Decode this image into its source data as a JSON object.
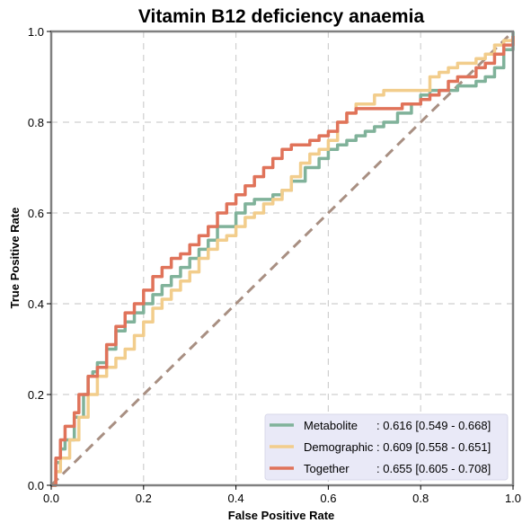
{
  "chart_data": {
    "type": "line",
    "title": "Vitamin B12 deficiency anaemia",
    "xlabel": "False Positive Rate",
    "ylabel": "True Positive Rate",
    "xlim": [
      0,
      1
    ],
    "ylim": [
      0,
      1
    ],
    "xticks": [
      "0.0",
      "0.2",
      "0.4",
      "0.6",
      "0.8",
      "1.0"
    ],
    "yticks": [
      "0.0",
      "0.2",
      "0.4",
      "0.6",
      "0.8",
      "1.0"
    ],
    "grid": true,
    "legend_position": "bottom-right",
    "legend_background": "#e9e9f7",
    "series": [
      {
        "name": "Metabolite",
        "auc_label": ": 0.616 [0.549 - 0.668]",
        "color": "#80b29a",
        "x": [
          0,
          0.01,
          0.02,
          0.03,
          0.05,
          0.07,
          0.08,
          0.09,
          0.1,
          0.12,
          0.14,
          0.16,
          0.18,
          0.2,
          0.22,
          0.24,
          0.26,
          0.28,
          0.3,
          0.32,
          0.34,
          0.36,
          0.4,
          0.42,
          0.44,
          0.46,
          0.48,
          0.5,
          0.52,
          0.55,
          0.58,
          0.6,
          0.62,
          0.64,
          0.66,
          0.68,
          0.7,
          0.72,
          0.75,
          0.78,
          0.8,
          0.82,
          0.85,
          0.88,
          0.9,
          0.92,
          0.94,
          0.96,
          0.98,
          1.0
        ],
        "y": [
          0,
          0.05,
          0.08,
          0.1,
          0.15,
          0.2,
          0.24,
          0.25,
          0.27,
          0.3,
          0.34,
          0.36,
          0.38,
          0.4,
          0.42,
          0.44,
          0.46,
          0.48,
          0.5,
          0.52,
          0.54,
          0.57,
          0.6,
          0.62,
          0.63,
          0.63,
          0.64,
          0.65,
          0.67,
          0.7,
          0.72,
          0.74,
          0.75,
          0.76,
          0.77,
          0.78,
          0.79,
          0.8,
          0.82,
          0.84,
          0.86,
          0.87,
          0.87,
          0.88,
          0.88,
          0.89,
          0.9,
          0.92,
          0.96,
          1.0
        ]
      },
      {
        "name": "Demographic",
        "auc_label": ": 0.609 [0.558 - 0.651]",
        "color": "#f2cd8c",
        "x": [
          0,
          0.01,
          0.02,
          0.04,
          0.06,
          0.08,
          0.1,
          0.12,
          0.14,
          0.16,
          0.18,
          0.2,
          0.22,
          0.24,
          0.26,
          0.28,
          0.3,
          0.32,
          0.34,
          0.36,
          0.38,
          0.4,
          0.42,
          0.44,
          0.46,
          0.48,
          0.5,
          0.52,
          0.54,
          0.56,
          0.58,
          0.6,
          0.62,
          0.64,
          0.66,
          0.7,
          0.72,
          0.76,
          0.8,
          0.82,
          0.84,
          0.86,
          0.88,
          0.9,
          0.92,
          0.94,
          0.96,
          0.98,
          1.0
        ],
        "y": [
          0,
          0.03,
          0.06,
          0.1,
          0.15,
          0.2,
          0.24,
          0.26,
          0.28,
          0.3,
          0.33,
          0.36,
          0.39,
          0.41,
          0.43,
          0.45,
          0.47,
          0.5,
          0.52,
          0.54,
          0.55,
          0.57,
          0.59,
          0.6,
          0.62,
          0.63,
          0.65,
          0.68,
          0.71,
          0.73,
          0.74,
          0.76,
          0.8,
          0.82,
          0.84,
          0.86,
          0.87,
          0.87,
          0.87,
          0.9,
          0.91,
          0.92,
          0.93,
          0.93,
          0.94,
          0.95,
          0.97,
          0.98,
          0.99
        ]
      },
      {
        "name": "Together",
        "auc_label": ": 0.655 [0.605 - 0.708]",
        "color": "#e0735a",
        "x": [
          0,
          0.01,
          0.02,
          0.03,
          0.05,
          0.06,
          0.08,
          0.1,
          0.12,
          0.14,
          0.16,
          0.18,
          0.2,
          0.22,
          0.24,
          0.26,
          0.28,
          0.3,
          0.32,
          0.34,
          0.36,
          0.38,
          0.4,
          0.42,
          0.44,
          0.46,
          0.48,
          0.5,
          0.52,
          0.54,
          0.56,
          0.58,
          0.6,
          0.62,
          0.64,
          0.66,
          0.7,
          0.72,
          0.76,
          0.8,
          0.82,
          0.84,
          0.86,
          0.88,
          0.9,
          0.92,
          0.94,
          0.96,
          0.98,
          1.0
        ],
        "y": [
          0,
          0.06,
          0.1,
          0.13,
          0.16,
          0.2,
          0.24,
          0.26,
          0.31,
          0.35,
          0.38,
          0.4,
          0.43,
          0.46,
          0.48,
          0.5,
          0.51,
          0.53,
          0.55,
          0.57,
          0.6,
          0.62,
          0.64,
          0.66,
          0.68,
          0.7,
          0.72,
          0.74,
          0.75,
          0.75,
          0.76,
          0.77,
          0.78,
          0.8,
          0.82,
          0.83,
          0.83,
          0.83,
          0.84,
          0.85,
          0.86,
          0.87,
          0.89,
          0.9,
          0.9,
          0.92,
          0.93,
          0.95,
          0.97,
          0.99
        ]
      }
    ],
    "reference_line": {
      "x": [
        0,
        1
      ],
      "y": [
        0,
        1
      ],
      "color": "#a88f82"
    }
  }
}
